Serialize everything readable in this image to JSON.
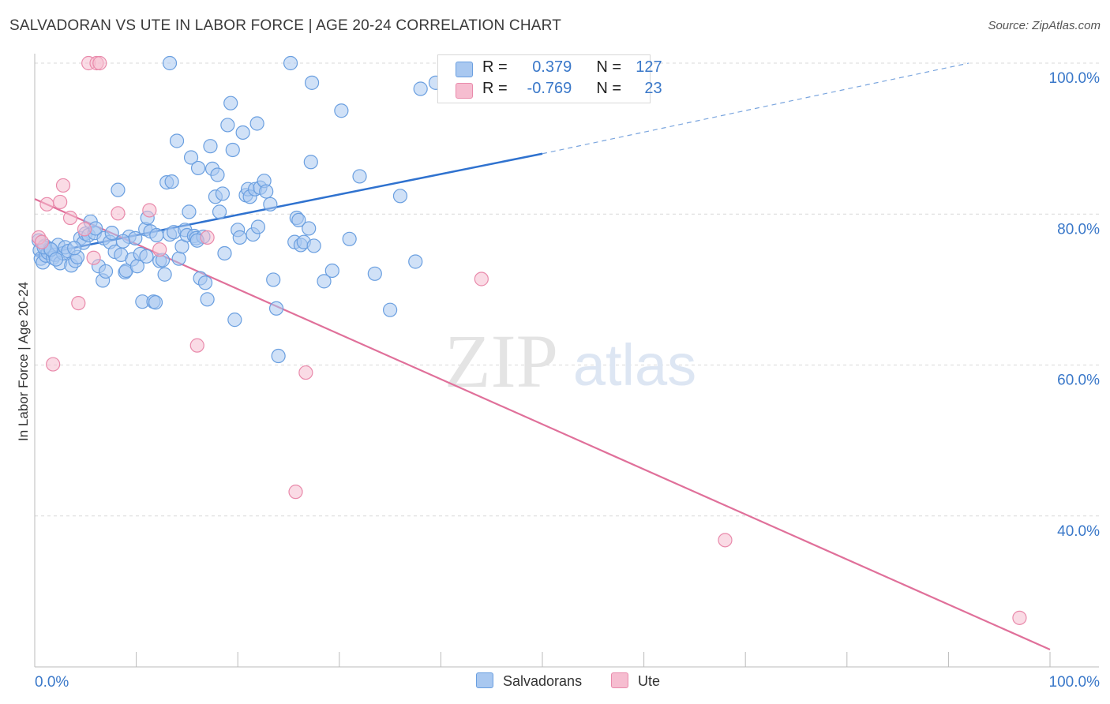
{
  "title": "SALVADORAN VS UTE IN LABOR FORCE | AGE 20-24 CORRELATION CHART",
  "source": "Source: ZipAtlas.com",
  "watermark": {
    "zip": "ZIP",
    "atlas": "atlas"
  },
  "legend_top": {
    "rows": [
      {
        "r_label": "R =",
        "r_value": "0.379",
        "n_label": "N =",
        "n_value": "127",
        "color": "#a9c8f0",
        "border": "#6a9fe0"
      },
      {
        "r_label": "R =",
        "r_value": "-0.769",
        "n_label": "N =",
        "n_value": "23",
        "color": "#f6bdd0",
        "border": "#e98aab"
      }
    ]
  },
  "legend_bottom": [
    {
      "label": "Salvadorans",
      "color": "#a9c8f0",
      "border": "#6a9fe0"
    },
    {
      "label": "Ute",
      "color": "#f6bdd0",
      "border": "#e98aab"
    }
  ],
  "chart_data": {
    "type": "scatter",
    "title": "SALVADORAN VS UTE IN LABOR FORCE | AGE 20-24 CORRELATION CHART",
    "xlabel": "",
    "ylabel": "In Labor Force | Age 20-24",
    "xlim": [
      0,
      100
    ],
    "ylim": [
      20,
      102
    ],
    "x_tick_labels": [
      {
        "value": 0,
        "label": "0.0%"
      },
      {
        "value": 100,
        "label": "100.0%"
      }
    ],
    "y_tick_labels": [
      {
        "value": 40,
        "label": "40.0%"
      },
      {
        "value": 60,
        "label": "60.0%"
      },
      {
        "value": 80,
        "label": "80.0%"
      },
      {
        "value": 100,
        "label": "100.0%"
      }
    ],
    "grid": true,
    "legend_position": "top-center",
    "series": [
      {
        "name": "Salvadorans",
        "color": "#6a9fe0",
        "fill": "#a9c8f0",
        "trend": {
          "x0": 0,
          "y0": 74.5,
          "x1": 50,
          "y1": 88.0,
          "dashed_to_x": 92,
          "dashed_to_y": 100
        },
        "points": [
          [
            0.4,
            76.5
          ],
          [
            0.5,
            75.2
          ],
          [
            0.6,
            74.1
          ],
          [
            0.8,
            73.6
          ],
          [
            1.0,
            75.8
          ],
          [
            1.1,
            74.5
          ],
          [
            1.3,
            74.9
          ],
          [
            1.5,
            75.4
          ],
          [
            1.8,
            74.2
          ],
          [
            2.0,
            74.6
          ],
          [
            2.3,
            75.9
          ],
          [
            2.5,
            73.5
          ],
          [
            2.8,
            74.8
          ],
          [
            3.0,
            75.6
          ],
          [
            3.3,
            75.1
          ],
          [
            3.6,
            73.2
          ],
          [
            4.0,
            73.8
          ],
          [
            4.2,
            74.3
          ],
          [
            4.5,
            76.8
          ],
          [
            4.8,
            76.2
          ],
          [
            5.0,
            77.4
          ],
          [
            5.3,
            77.2
          ],
          [
            5.5,
            79.0
          ],
          [
            5.9,
            77.5
          ],
          [
            6.3,
            73.1
          ],
          [
            6.7,
            71.2
          ],
          [
            6.8,
            76.8
          ],
          [
            7.0,
            72.4
          ],
          [
            7.4,
            76.3
          ],
          [
            7.6,
            77.5
          ],
          [
            7.9,
            75.0
          ],
          [
            8.2,
            83.2
          ],
          [
            8.5,
            74.6
          ],
          [
            8.9,
            72.3
          ],
          [
            9.0,
            72.5
          ],
          [
            9.3,
            77.0
          ],
          [
            9.6,
            74.0
          ],
          [
            9.9,
            76.8
          ],
          [
            10.1,
            73.1
          ],
          [
            10.4,
            74.7
          ],
          [
            10.6,
            68.4
          ],
          [
            10.9,
            78.0
          ],
          [
            11.1,
            79.5
          ],
          [
            11.4,
            77.7
          ],
          [
            11.7,
            68.4
          ],
          [
            11.9,
            68.3
          ],
          [
            12.3,
            73.8
          ],
          [
            12.6,
            73.9
          ],
          [
            12.8,
            72.0
          ],
          [
            13.0,
            84.2
          ],
          [
            13.3,
            77.3
          ],
          [
            13.5,
            84.3
          ],
          [
            13.7,
            77.6
          ],
          [
            14.0,
            89.7
          ],
          [
            14.2,
            74.1
          ],
          [
            14.5,
            75.7
          ],
          [
            14.8,
            77.9
          ],
          [
            15.0,
            77.2
          ],
          [
            15.2,
            80.3
          ],
          [
            15.4,
            87.5
          ],
          [
            15.7,
            77.1
          ],
          [
            15.9,
            76.8
          ],
          [
            16.1,
            86.1
          ],
          [
            16.3,
            71.5
          ],
          [
            16.6,
            77.0
          ],
          [
            16.8,
            70.9
          ],
          [
            17.0,
            68.7
          ],
          [
            17.3,
            89.0
          ],
          [
            17.5,
            86.0
          ],
          [
            17.8,
            82.3
          ],
          [
            18.0,
            85.2
          ],
          [
            18.2,
            80.3
          ],
          [
            18.5,
            82.7
          ],
          [
            18.7,
            74.8
          ],
          [
            19.0,
            91.8
          ],
          [
            19.3,
            94.7
          ],
          [
            19.5,
            88.5
          ],
          [
            19.7,
            66.0
          ],
          [
            20.0,
            77.9
          ],
          [
            20.2,
            76.9
          ],
          [
            20.5,
            90.8
          ],
          [
            20.8,
            82.5
          ],
          [
            21.0,
            83.3
          ],
          [
            21.2,
            82.3
          ],
          [
            21.5,
            77.3
          ],
          [
            21.7,
            83.3
          ],
          [
            21.9,
            92.0
          ],
          [
            22.2,
            83.5
          ],
          [
            22.6,
            84.4
          ],
          [
            22.8,
            83.0
          ],
          [
            23.2,
            81.3
          ],
          [
            23.5,
            71.3
          ],
          [
            23.8,
            67.5
          ],
          [
            24.0,
            61.2
          ],
          [
            25.2,
            100.0
          ],
          [
            25.6,
            76.3
          ],
          [
            25.8,
            79.5
          ],
          [
            26.0,
            79.2
          ],
          [
            26.2,
            75.9
          ],
          [
            26.5,
            76.3
          ],
          [
            27.0,
            78.1
          ],
          [
            27.3,
            97.4
          ],
          [
            27.5,
            75.8
          ],
          [
            27.2,
            86.9
          ],
          [
            28.5,
            71.1
          ],
          [
            29.3,
            72.5
          ],
          [
            30.2,
            93.7
          ],
          [
            31.0,
            76.7
          ],
          [
            32.0,
            85.0
          ],
          [
            33.5,
            72.1
          ],
          [
            35.0,
            67.3
          ],
          [
            36.0,
            82.4
          ],
          [
            37.5,
            73.7
          ],
          [
            38.0,
            96.6
          ],
          [
            39.5,
            97.4
          ],
          [
            42.5,
            100.0
          ],
          [
            13.3,
            100.0
          ],
          [
            0.9,
            75.6
          ],
          [
            1.6,
            75.3
          ],
          [
            2.1,
            74.0
          ],
          [
            3.9,
            75.5
          ],
          [
            6.0,
            78.1
          ],
          [
            8.7,
            76.4
          ],
          [
            11.0,
            74.4
          ],
          [
            12.0,
            77.2
          ],
          [
            16.0,
            76.5
          ],
          [
            22.0,
            78.3
          ]
        ]
      },
      {
        "name": "Ute",
        "color": "#e98aab",
        "fill": "#f6bdd0",
        "trend": {
          "x0": 0,
          "y0": 82.0,
          "x1": 100,
          "y1": 22.3
        },
        "points": [
          [
            0.4,
            76.9
          ],
          [
            0.7,
            76.3
          ],
          [
            1.2,
            81.3
          ],
          [
            1.8,
            60.1
          ],
          [
            2.5,
            81.6
          ],
          [
            2.8,
            83.8
          ],
          [
            3.5,
            79.5
          ],
          [
            4.3,
            68.2
          ],
          [
            4.9,
            78.0
          ],
          [
            5.3,
            100.0
          ],
          [
            6.1,
            100.0
          ],
          [
            6.4,
            100.0
          ],
          [
            5.8,
            74.2
          ],
          [
            8.2,
            80.1
          ],
          [
            11.3,
            80.5
          ],
          [
            12.3,
            75.3
          ],
          [
            16.0,
            62.6
          ],
          [
            17.0,
            76.9
          ],
          [
            25.7,
            43.2
          ],
          [
            26.7,
            59.0
          ],
          [
            44.0,
            71.4
          ],
          [
            68.0,
            36.8
          ],
          [
            97.0,
            26.5
          ]
        ]
      }
    ]
  }
}
